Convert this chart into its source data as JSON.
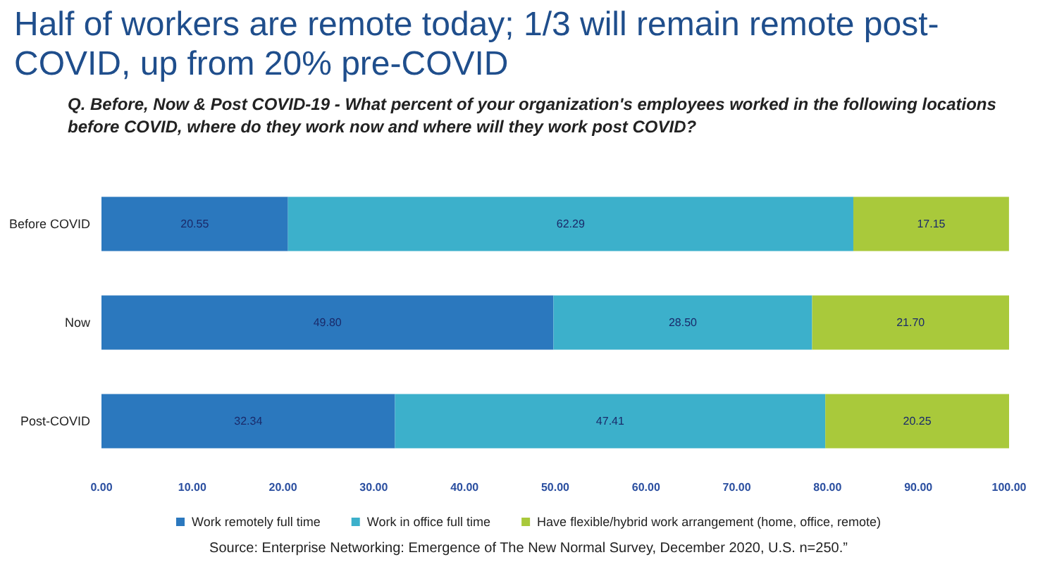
{
  "chart_data": {
    "type": "bar",
    "orientation": "horizontal",
    "stacked": true,
    "title": "Half of workers are remote today; 1/3 will remain remote post-COVID, up from 20% pre-COVID",
    "subtitle": "Q. Before, Now & Post COVID-19 - What percent of your organization's employees worked in the following locations before COVID, where do they work now and where will they work post COVID?",
    "annotations": [
      "Source: Enterprise Networking: Emergence of The New Normal Survey, December 2020, U.S. n=250.”"
    ],
    "categories": [
      "Before COVID",
      "Now",
      "Post-COVID"
    ],
    "series": [
      {
        "name": "Work remotely full time",
        "color": "#2b78be",
        "values": [
          20.55,
          49.8,
          32.34
        ],
        "value_labels": [
          "20.55",
          "49.80",
          "32.34"
        ]
      },
      {
        "name": "Work in office full time",
        "color": "#3cb0cb",
        "values": [
          62.29,
          28.5,
          47.41
        ],
        "value_labels": [
          "62.29",
          "28.50",
          "47.41"
        ]
      },
      {
        "name": "Have flexible/hybrid work arrangement (home, office, remote)",
        "color": "#a9c93b",
        "values": [
          17.15,
          21.7,
          20.25
        ],
        "value_labels": [
          "17.15",
          "21.70",
          "20.25"
        ]
      }
    ],
    "xlim": [
      0,
      100
    ],
    "xticks": [
      {
        "value": 0,
        "label": "0.00"
      },
      {
        "value": 10,
        "label": "10.00"
      },
      {
        "value": 20,
        "label": "20.00"
      },
      {
        "value": 30,
        "label": "30.00"
      },
      {
        "value": 40,
        "label": "40.00"
      },
      {
        "value": 50,
        "label": "50.00"
      },
      {
        "value": 60,
        "label": "60.00"
      },
      {
        "value": 70,
        "label": "70.00"
      },
      {
        "value": 80,
        "label": "80.00"
      },
      {
        "value": 90,
        "label": "90.00"
      },
      {
        "value": 100,
        "label": "100.00"
      }
    ],
    "grid": false,
    "legend": "bottom"
  }
}
